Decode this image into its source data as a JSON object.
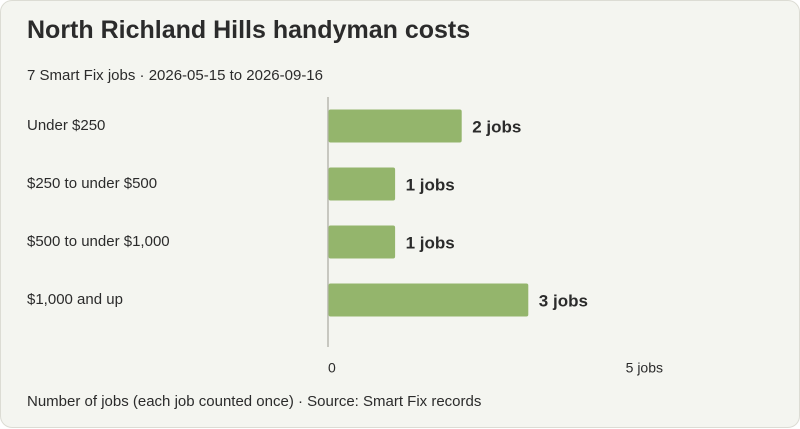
{
  "header": {
    "title": "North Richland Hills handyman costs",
    "subtitle": "7 Smart Fix jobs · 2026-05-15 to 2026-09-16"
  },
  "footer": {
    "note": "Number of jobs (each job counted once) · Source: Smart Fix records"
  },
  "colors": {
    "bar": "#94b56c",
    "axis": "#b8b8b0",
    "background": "#f4f5f0"
  },
  "chart_data": {
    "type": "bar",
    "orientation": "horizontal",
    "title": "North Richland Hills handyman costs",
    "subtitle": "7 Smart Fix jobs · 2026-05-15 to 2026-09-16",
    "categories": [
      "Under $250",
      "$250 to under $500",
      "$500 to under $1,000",
      "$1,000 and up"
    ],
    "values": [
      2,
      1,
      1,
      3
    ],
    "value_labels": [
      "2 jobs",
      "1 jobs",
      "1 jobs",
      "3 jobs"
    ],
    "xlim": [
      0,
      5
    ],
    "x_ticks": [
      0,
      5
    ],
    "x_tick_labels": [
      "0",
      "5 jobs"
    ],
    "xlabel": "",
    "ylabel": "",
    "grid": false,
    "legend": "none"
  }
}
